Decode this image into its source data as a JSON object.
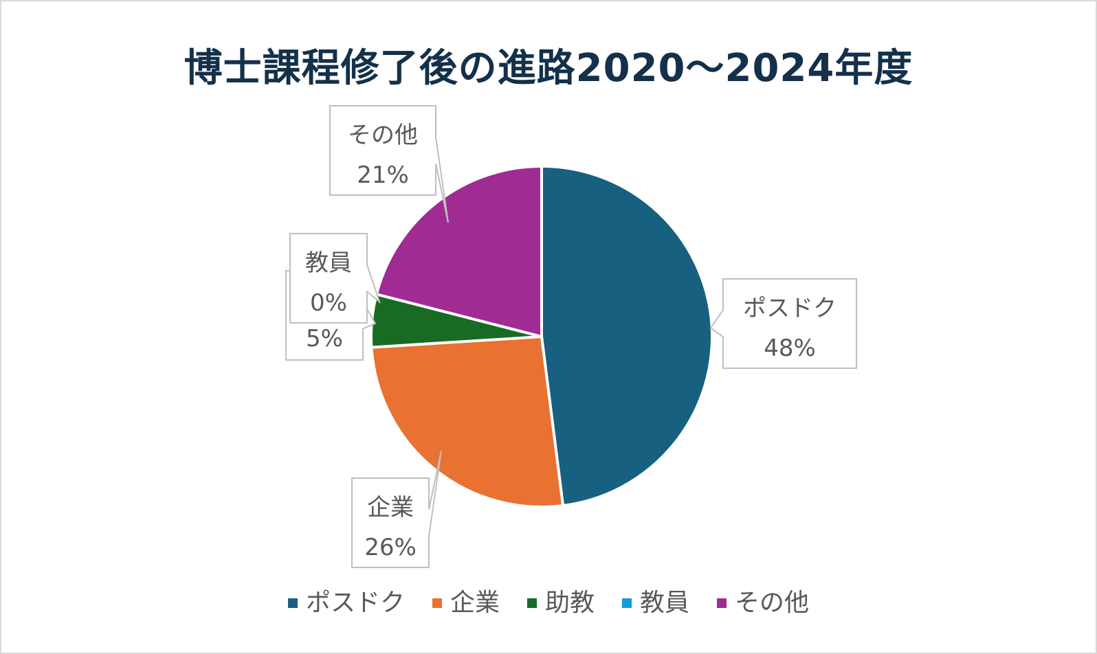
{
  "chart_data": {
    "type": "pie",
    "title": "博士課程修了後の進路2020〜2024年度",
    "categories": [
      "ポスドク",
      "企業",
      "助教",
      "教員",
      "その他"
    ],
    "values": [
      48,
      26,
      5,
      0,
      21
    ],
    "value_labels": [
      "48%",
      "26%",
      "5%",
      "0%",
      "21%"
    ],
    "colors": [
      "#17607f",
      "#e97132",
      "#196b24",
      "#0f9ed5",
      "#a02b93"
    ],
    "legend_position": "bottom",
    "data_label_style": "callout"
  }
}
